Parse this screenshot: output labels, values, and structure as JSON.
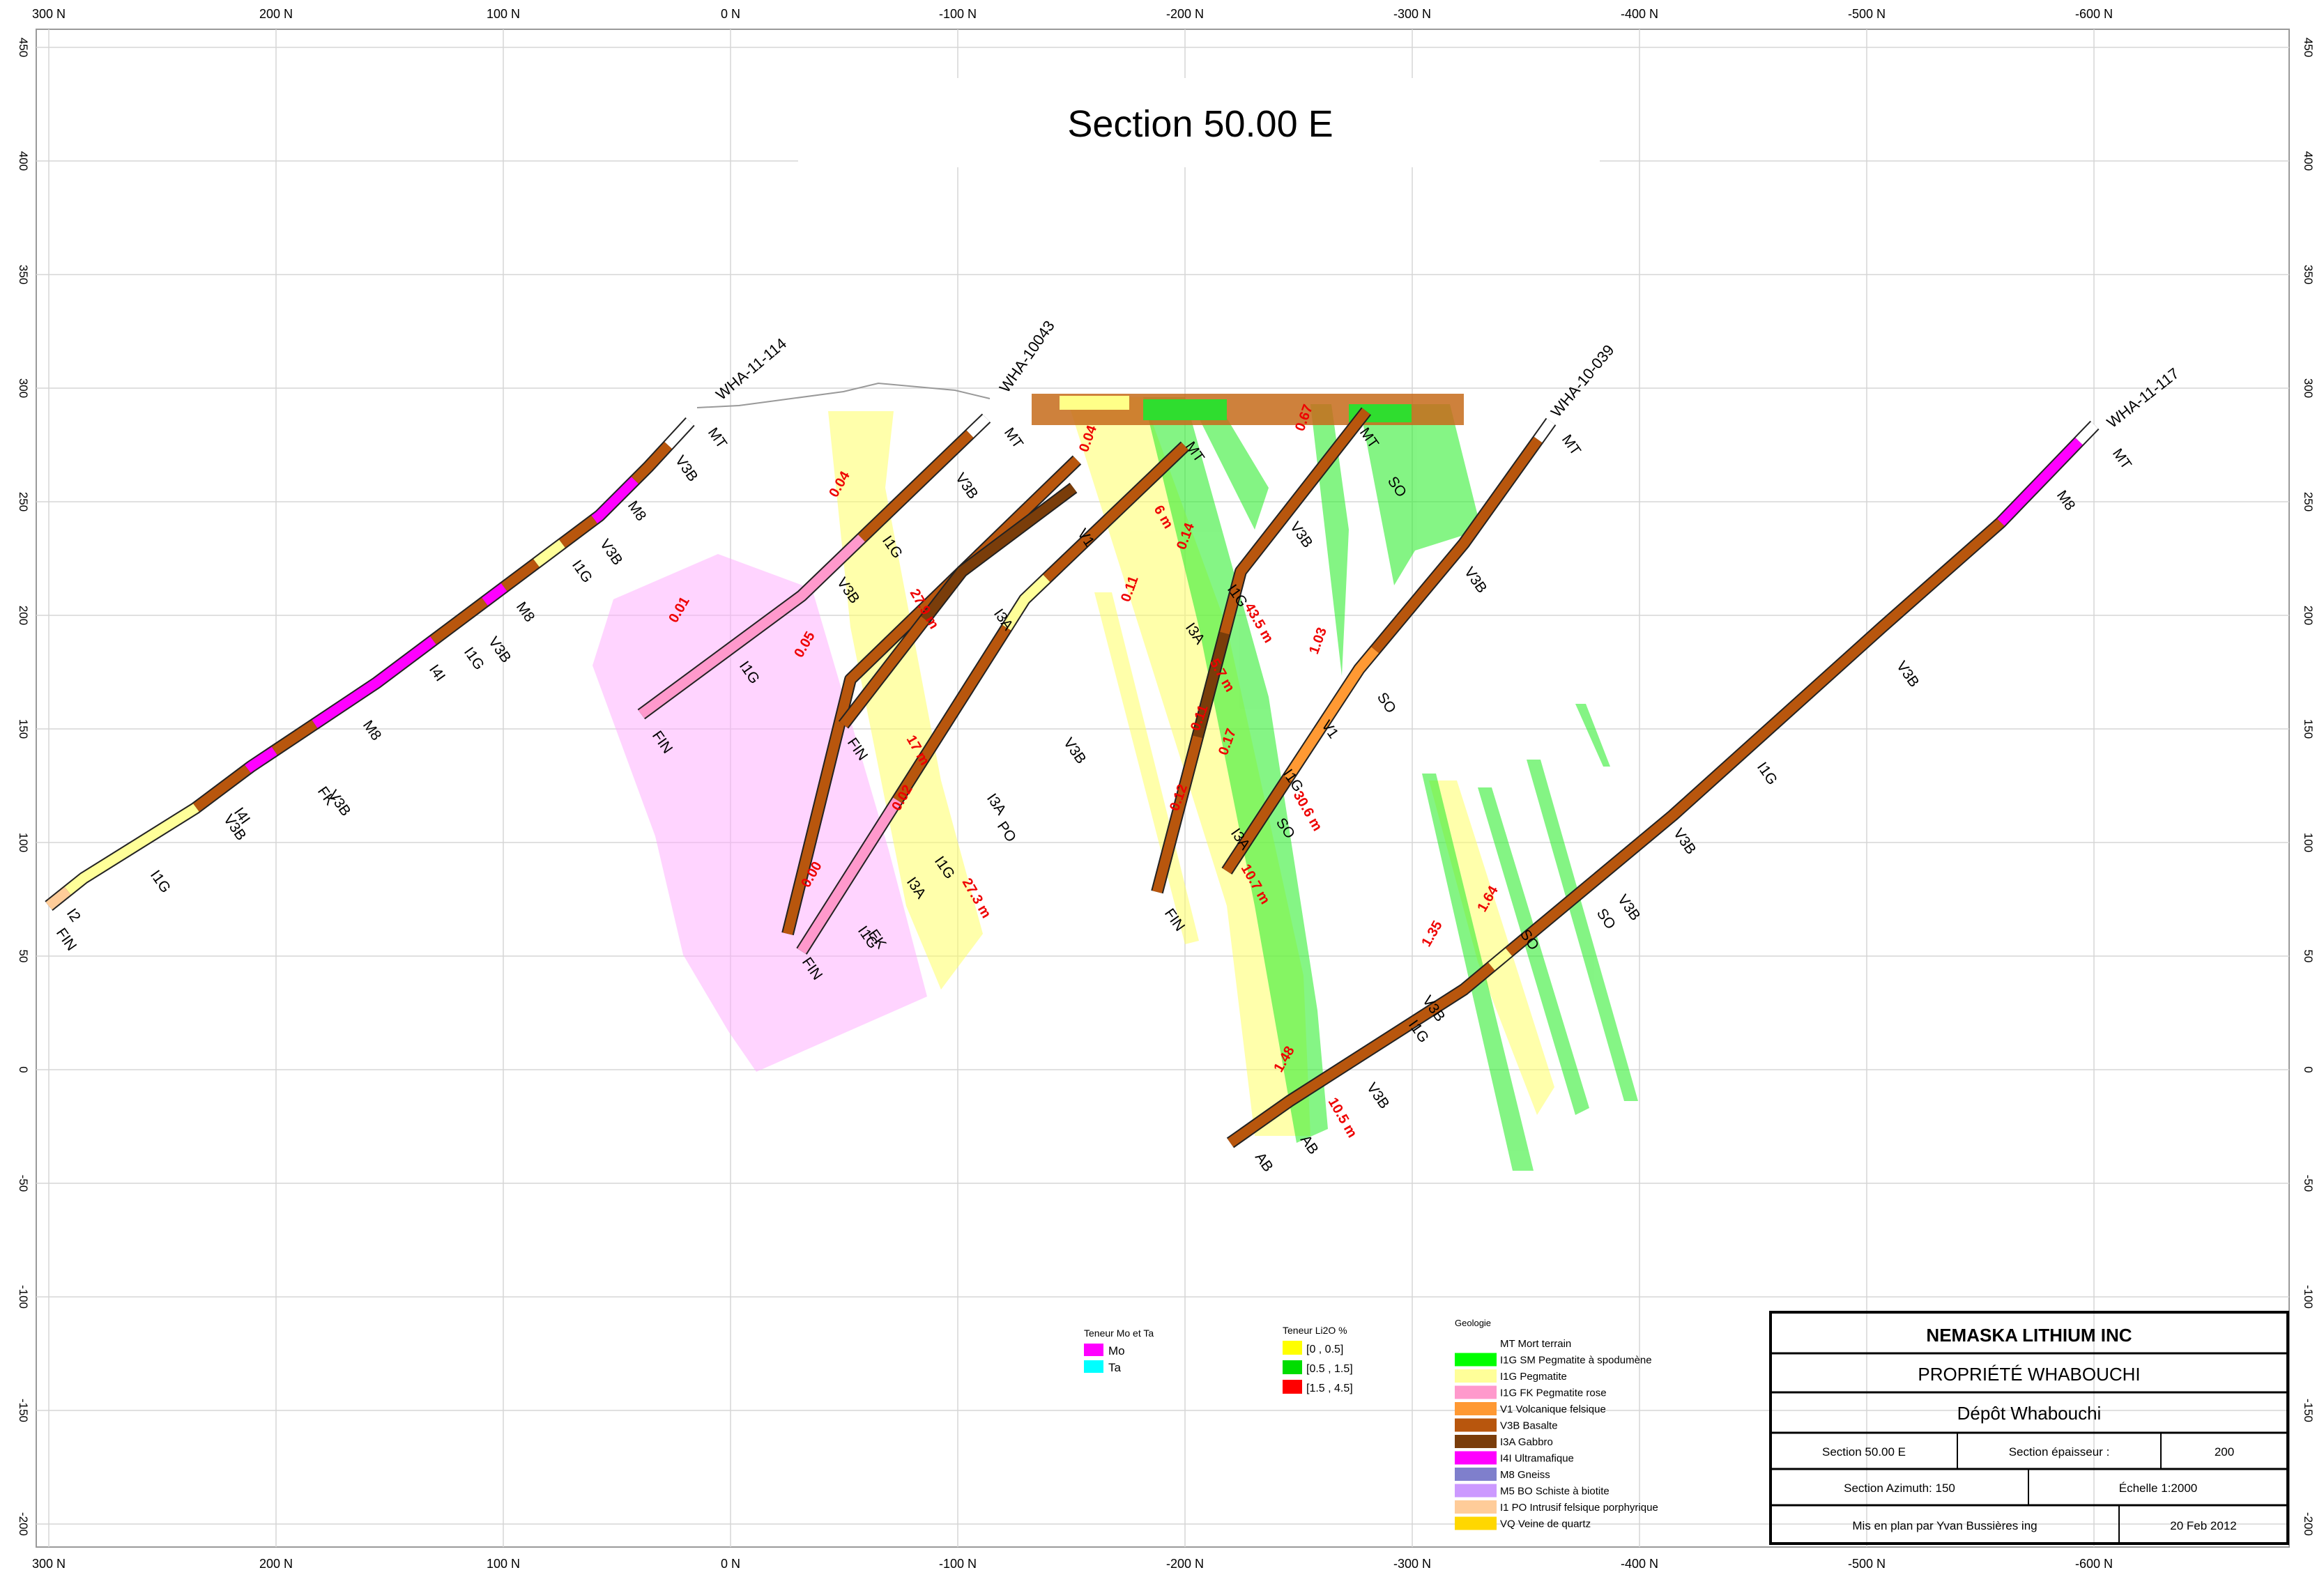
{
  "section_title": "Section 50.00 E",
  "axes": {
    "x_ticks": [
      "300 N",
      "200 N",
      "100 N",
      "0 N",
      "-100 N",
      "-200 N",
      "-300 N",
      "-400 N",
      "-500 N",
      "-600 N"
    ],
    "y_ticks": [
      "450",
      "400",
      "350",
      "300",
      "250",
      "200",
      "150",
      "100",
      "50",
      "0",
      "-50",
      "-100",
      "-150",
      "-200"
    ]
  },
  "drillholes": [
    {
      "name": "WHA-11-114"
    },
    {
      "name": "WHA-10-039"
    },
    {
      "name": "WHA-11-117"
    },
    {
      "name": "WHA-10043"
    }
  ],
  "interval_labels": {
    "grades": [
      "0.01",
      "0.04",
      "0.05",
      "0.02",
      "0.00",
      "0.04",
      "0.11",
      "0.14",
      "0.11",
      "0.17",
      "0.12",
      "1.03",
      "1.48",
      "1.35",
      "1.64",
      "0.67"
    ],
    "lengths": [
      "27.9 m",
      "43.5 m",
      "30.6 m",
      "10.7 m",
      "27.3 m",
      "10.5 m",
      "5.7 m",
      "17 m",
      "6 m"
    ]
  },
  "rock_labels": [
    "MT",
    "V3B",
    "M8",
    "I1G",
    "I4I",
    "FK",
    "I2",
    "FIN",
    "I3A",
    "V1",
    "SO",
    "PO",
    "AB",
    "EK"
  ],
  "legend_mo_ta": {
    "title": "Teneur Mo et Ta",
    "items": [
      {
        "label": "Mo",
        "color": "#ff00ff"
      },
      {
        "label": "Ta",
        "color": "#00ffff"
      }
    ]
  },
  "legend_li2o": {
    "title": "Teneur Li2O %",
    "items": [
      {
        "label": "[0 , 0.5]",
        "color": "#ffff00"
      },
      {
        "label": "[0.5 , 1.5]",
        "color": "#00dd00"
      },
      {
        "label": "[1.5 , 4.5]",
        "color": "#ff0000"
      }
    ]
  },
  "legend_geologie": {
    "title": "Geologie",
    "items": [
      {
        "label": "MT Mort terrain",
        "color": "#ffffff"
      },
      {
        "label": "I1G SM Pegmatite à spodumène",
        "color": "#00ff00"
      },
      {
        "label": "I1G      Pegmatite",
        "color": "#ffff99"
      },
      {
        "label": "I1G FK Pegmatite rose",
        "color": "#ff99cc"
      },
      {
        "label": "V1 Volcanique felsique",
        "color": "#ff9933"
      },
      {
        "label": "V3B Basalte",
        "color": "#b8560d"
      },
      {
        "label": "I3A Gabbro",
        "color": "#7a3d0a"
      },
      {
        "label": "I4I Ultramafique",
        "color": "#ff00ff"
      },
      {
        "label": "M8 Gneiss",
        "color": "#7f7fcc"
      },
      {
        "label": "M5 BO Schiste à biotite",
        "color": "#cc99ff"
      },
      {
        "label": "I1 PO Intrusif felsique porphyrique",
        "color": "#ffcc99"
      },
      {
        "label": "VQ Veine de quartz",
        "color": "#ffd700"
      }
    ]
  },
  "title_block": {
    "company": "NEMASKA LITHIUM INC",
    "property": "PROPRIÉTÉ WHABOUCHI",
    "deposit": "Dépôt Whabouchi",
    "section": "Section 50.00 E",
    "thickness_label": "Section épaisseur :",
    "thickness_value": "200",
    "azimuth": "Section Azimuth: 150",
    "scale": "Échelle   1:2000",
    "author": "Mis en plan par Yvan Bussières ing",
    "date": "20 Feb 2012"
  }
}
